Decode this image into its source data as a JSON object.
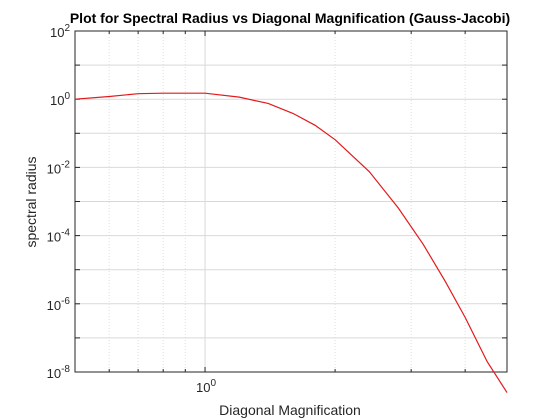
{
  "chart_data": {
    "type": "line",
    "title": "Plot for Spectral Radius vs Diagonal Magnification (Gauss-Jacobi)",
    "xlabel": "Diagonal Magnification",
    "ylabel": "spectral radius",
    "xscale": "log",
    "yscale": "log",
    "xlim": [
      0.5,
      5.0
    ],
    "ylim": [
      1e-08,
      100
    ],
    "grid": true,
    "x_tick_labels": [
      {
        "value": 1,
        "base": "10",
        "exp": "0"
      }
    ],
    "y_tick_labels": [
      {
        "value": 1e-08,
        "base": "10",
        "exp": "-8"
      },
      {
        "value": 1e-06,
        "base": "10",
        "exp": "-6"
      },
      {
        "value": 0.0001,
        "base": "10",
        "exp": "-4"
      },
      {
        "value": 0.01,
        "base": "10",
        "exp": "-2"
      },
      {
        "value": 1,
        "base": "10",
        "exp": "0"
      },
      {
        "value": 100,
        "base": "10",
        "exp": "2"
      }
    ],
    "series": [
      {
        "color": "#e31a1c",
        "x": [
          0.5,
          0.6,
          0.7,
          0.8,
          1.0,
          1.2,
          1.4,
          1.6,
          1.8,
          2.0,
          2.4,
          2.8,
          3.2,
          3.6,
          4.0,
          4.5,
          5.0
        ],
        "y": [
          1.0,
          1.2,
          1.45,
          1.5,
          1.5,
          1.15,
          0.75,
          0.38,
          0.17,
          0.065,
          0.0075,
          0.00065,
          5.5e-05,
          4.5e-06,
          4e-07,
          2e-08,
          2.5e-09
        ]
      }
    ]
  }
}
